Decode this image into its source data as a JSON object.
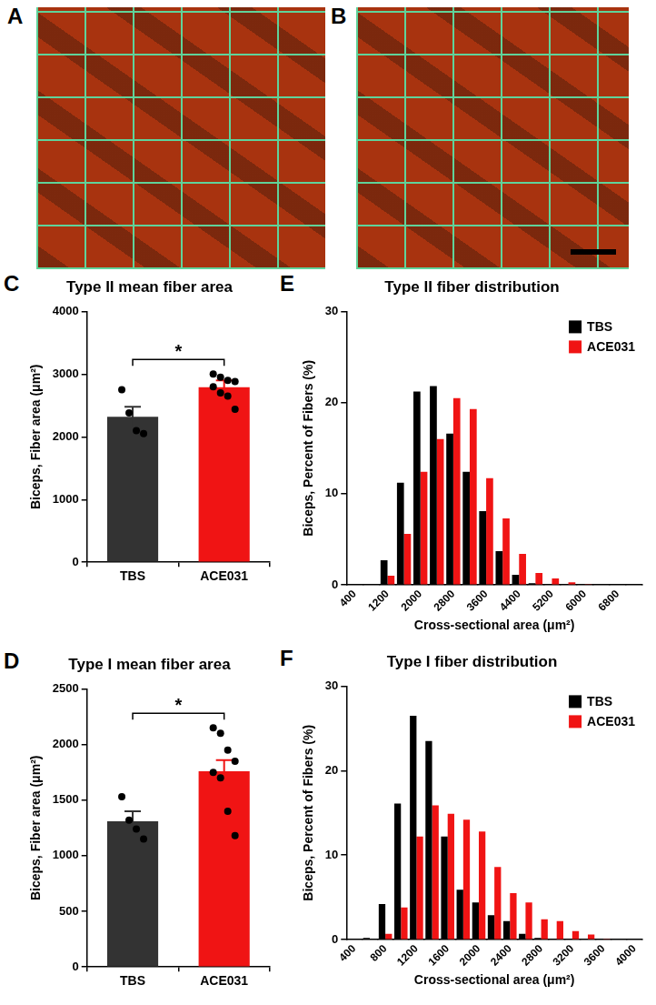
{
  "images": [
    {
      "panel": "A"
    },
    {
      "panel": "B"
    }
  ],
  "chart_data": [
    {
      "panel": "C",
      "type": "bar",
      "title": "Type II mean fiber area",
      "y_label": "Biceps, Fiber area (μm²)",
      "categories": [
        "TBS",
        "ACE031"
      ],
      "values": [
        2320,
        2790
      ],
      "errors": [
        160,
        110
      ],
      "points": [
        [
          2750,
          2380,
          2100,
          2050
        ],
        [
          3000,
          2950,
          2900,
          2880,
          2800,
          2700,
          2650,
          2440
        ]
      ],
      "colors": [
        "#333333",
        "#f01414"
      ],
      "ylim": [
        0,
        4000
      ],
      "yticks": [
        0,
        1000,
        2000,
        3000,
        4000
      ],
      "grid": false,
      "annotations": [
        {
          "text": "*",
          "from": "TBS",
          "to": "ACE031"
        }
      ]
    },
    {
      "panel": "D",
      "type": "bar",
      "title": "Type I mean fiber area",
      "y_label": "Biceps, Fiber area (μm²)",
      "categories": [
        "TBS",
        "ACE031"
      ],
      "values": [
        1310,
        1760
      ],
      "errors": [
        90,
        100
      ],
      "points": [
        [
          1530,
          1320,
          1240,
          1150
        ],
        [
          2150,
          2100,
          1950,
          1850,
          1750,
          1700,
          1400,
          1180
        ]
      ],
      "colors": [
        "#333333",
        "#f01414"
      ],
      "ylim": [
        0,
        2500
      ],
      "yticks": [
        0,
        500,
        1000,
        1500,
        2000,
        2500
      ],
      "grid": false,
      "annotations": [
        {
          "text": "*",
          "from": "TBS",
          "to": "ACE031"
        }
      ]
    },
    {
      "panel": "E",
      "type": "bar",
      "title": "Type II fiber distribution",
      "x_label": "Cross-sectional area (μm²)",
      "y_label": "Biceps, Percent of Fibers (%)",
      "categories": [
        "400",
        null,
        "1200",
        null,
        "2000",
        null,
        "2800",
        null,
        "3600",
        null,
        "4400",
        null,
        "5200",
        null,
        "6000",
        null,
        "6800",
        null
      ],
      "series": [
        {
          "name": "TBS",
          "color": "#000000",
          "values": [
            0,
            0,
            2.7,
            11.2,
            21.2,
            21.8,
            16.6,
            12.4,
            8.1,
            3.7,
            1.1,
            0.2,
            0,
            0,
            0,
            0,
            0,
            0
          ]
        },
        {
          "name": "ACE031",
          "color": "#f01414",
          "values": [
            0,
            0,
            1.0,
            5.6,
            12.4,
            16.0,
            20.5,
            19.3,
            11.7,
            7.3,
            3.4,
            1.3,
            0.7,
            0.3,
            0.1,
            0,
            0,
            0
          ]
        }
      ],
      "ylim": [
        0,
        30
      ],
      "yticks": [
        0,
        10,
        20,
        30
      ],
      "grid": false,
      "legend": "upper right"
    },
    {
      "panel": "F",
      "type": "bar",
      "title": "Type I fiber distribution",
      "x_label": "Cross-sectional area (μm²)",
      "y_label": "Biceps, Percent of Fibers (%)",
      "categories": [
        "400",
        null,
        "800",
        null,
        "1200",
        null,
        "1600",
        null,
        "2000",
        null,
        "2400",
        null,
        "2800",
        null,
        "3200",
        null,
        "3600",
        null,
        "4000"
      ],
      "series": [
        {
          "name": "TBS",
          "color": "#000000",
          "values": [
            0,
            0.2,
            4.2,
            16.1,
            26.5,
            23.5,
            12.2,
            5.9,
            4.4,
            2.9,
            2.2,
            0.7,
            0.2,
            0,
            0,
            0,
            0,
            0,
            0
          ]
        },
        {
          "name": "ACE031",
          "color": "#f01414",
          "values": [
            0,
            0,
            0.7,
            3.8,
            12.2,
            15.9,
            14.9,
            14.2,
            12.8,
            8.6,
            5.5,
            4.4,
            2.4,
            2.2,
            1.0,
            0.6,
            0.1,
            0,
            0
          ]
        }
      ],
      "ylim": [
        0,
        30
      ],
      "yticks": [
        0,
        10,
        20,
        30
      ],
      "grid": false,
      "legend": "upper right"
    }
  ]
}
